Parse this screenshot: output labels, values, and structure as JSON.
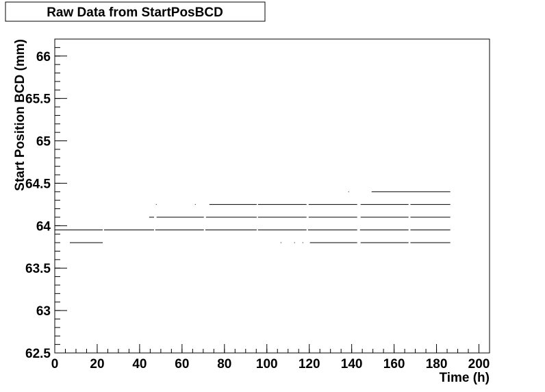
{
  "chart_data": {
    "type": "levels",
    "title": "Raw Data from StartPosBCD",
    "x_label": "Time (h)",
    "y_label": "Start Position BCD (mm)",
    "xlim": [
      0,
      205
    ],
    "ylim": [
      62.5,
      66.2
    ],
    "xticks": [
      0,
      20,
      40,
      60,
      80,
      100,
      120,
      140,
      160,
      180,
      200
    ],
    "yticks": [
      62.5,
      63,
      63.5,
      64,
      64.5,
      65,
      65.5,
      66
    ],
    "color": "#000000",
    "levels": [
      {
        "y": 63.95,
        "segments": [
          [
            0,
            22.6
          ],
          [
            23.2,
            46.8
          ],
          [
            47.4,
            70.3
          ],
          [
            71,
            95.2
          ],
          [
            95.8,
            118.7
          ],
          [
            119.4,
            142.6
          ],
          [
            143.9,
            166.8
          ],
          [
            167.7,
            186.5
          ]
        ]
      },
      {
        "y": 63.8,
        "segments": [
          [
            7.1,
            22.6
          ],
          [
            106.5,
            106.5
          ],
          [
            112.9,
            112.9
          ],
          [
            116.8,
            116.8
          ],
          [
            120.3,
            142.6
          ],
          [
            144.2,
            166.8
          ],
          [
            167.7,
            186.5
          ]
        ]
      },
      {
        "y": 64.1,
        "segments": [
          [
            44.5,
            46.8
          ],
          [
            48,
            70.3
          ],
          [
            71.3,
            95.2
          ],
          [
            95.8,
            118.7
          ],
          [
            119.7,
            142.6
          ],
          [
            144.2,
            166.8
          ],
          [
            167.7,
            186.5
          ]
        ]
      },
      {
        "y": 64.25,
        "segments": [
          [
            47.7,
            47.7
          ],
          [
            66.1,
            66.1
          ],
          [
            72.9,
            95.2
          ],
          [
            95.8,
            118.7
          ],
          [
            119.7,
            142.6
          ],
          [
            144.2,
            166.8
          ],
          [
            167.7,
            186.5
          ]
        ]
      },
      {
        "y": 64.4,
        "segments": [
          [
            138.4,
            138.4
          ],
          [
            149.4,
            186.5
          ]
        ]
      }
    ]
  }
}
